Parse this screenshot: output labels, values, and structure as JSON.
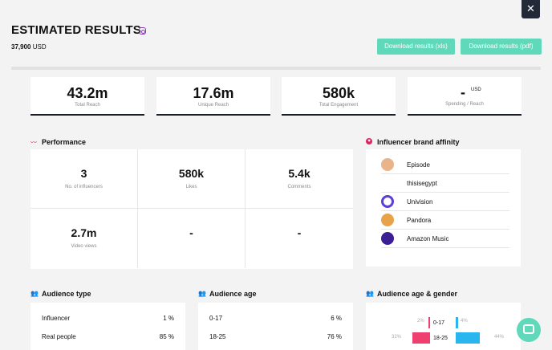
{
  "header": {
    "title": "ESTIMATED RESULTS",
    "budget_value": "37,900",
    "budget_unit": "USD",
    "btn_xls": "Download results (xls)",
    "btn_pdf": "Download results (pdf)",
    "close": "✕"
  },
  "stats": [
    {
      "value": "43.2m",
      "label": "Total Reach"
    },
    {
      "value": "17.6m",
      "label": "Unique Reach"
    },
    {
      "value": "580k",
      "label": "Total Engagement"
    },
    {
      "value": "-",
      "unit": "USD",
      "label": "Spending / Reach"
    }
  ],
  "performance": {
    "title": "Performance",
    "cells": [
      {
        "value": "3",
        "label": "No. of influencers"
      },
      {
        "value": "580k",
        "label": "Likes"
      },
      {
        "value": "5.4k",
        "label": "Comments"
      },
      {
        "value": "2.7m",
        "label": "Video views"
      },
      {
        "value": "-",
        "label": ""
      },
      {
        "value": "-",
        "label": ""
      }
    ]
  },
  "affinity": {
    "title": "Influencer brand affinity",
    "items": [
      {
        "name": "Episode",
        "color": "#e9b48a"
      },
      {
        "name": "thisisegypt",
        "color": ""
      },
      {
        "name": "Univision",
        "color": "#5b3fd6"
      },
      {
        "name": "Pandora",
        "color": "#e8a24a"
      },
      {
        "name": "Amazon Music",
        "color": "#3b1e94"
      }
    ]
  },
  "audience_type": {
    "title": "Audience type",
    "rows": [
      {
        "label": "Influencer",
        "pct": "1 %"
      },
      {
        "label": "Real people",
        "pct": "85 %"
      }
    ]
  },
  "audience_age": {
    "title": "Audience age",
    "rows": [
      {
        "label": "0-17",
        "pct": "6 %"
      },
      {
        "label": "18-25",
        "pct": "76 %"
      }
    ]
  },
  "age_gender": {
    "title": "Audience age & gender",
    "rows": [
      {
        "label": "0-17",
        "female": 2,
        "male": 4,
        "female_label": "2%",
        "male_label": "4%"
      },
      {
        "label": "18-25",
        "female": 32,
        "male": 44,
        "female_label": "32%",
        "male_label": "44%"
      }
    ],
    "female_color": "#ee3f6f",
    "male_color": "#29b6ee"
  }
}
